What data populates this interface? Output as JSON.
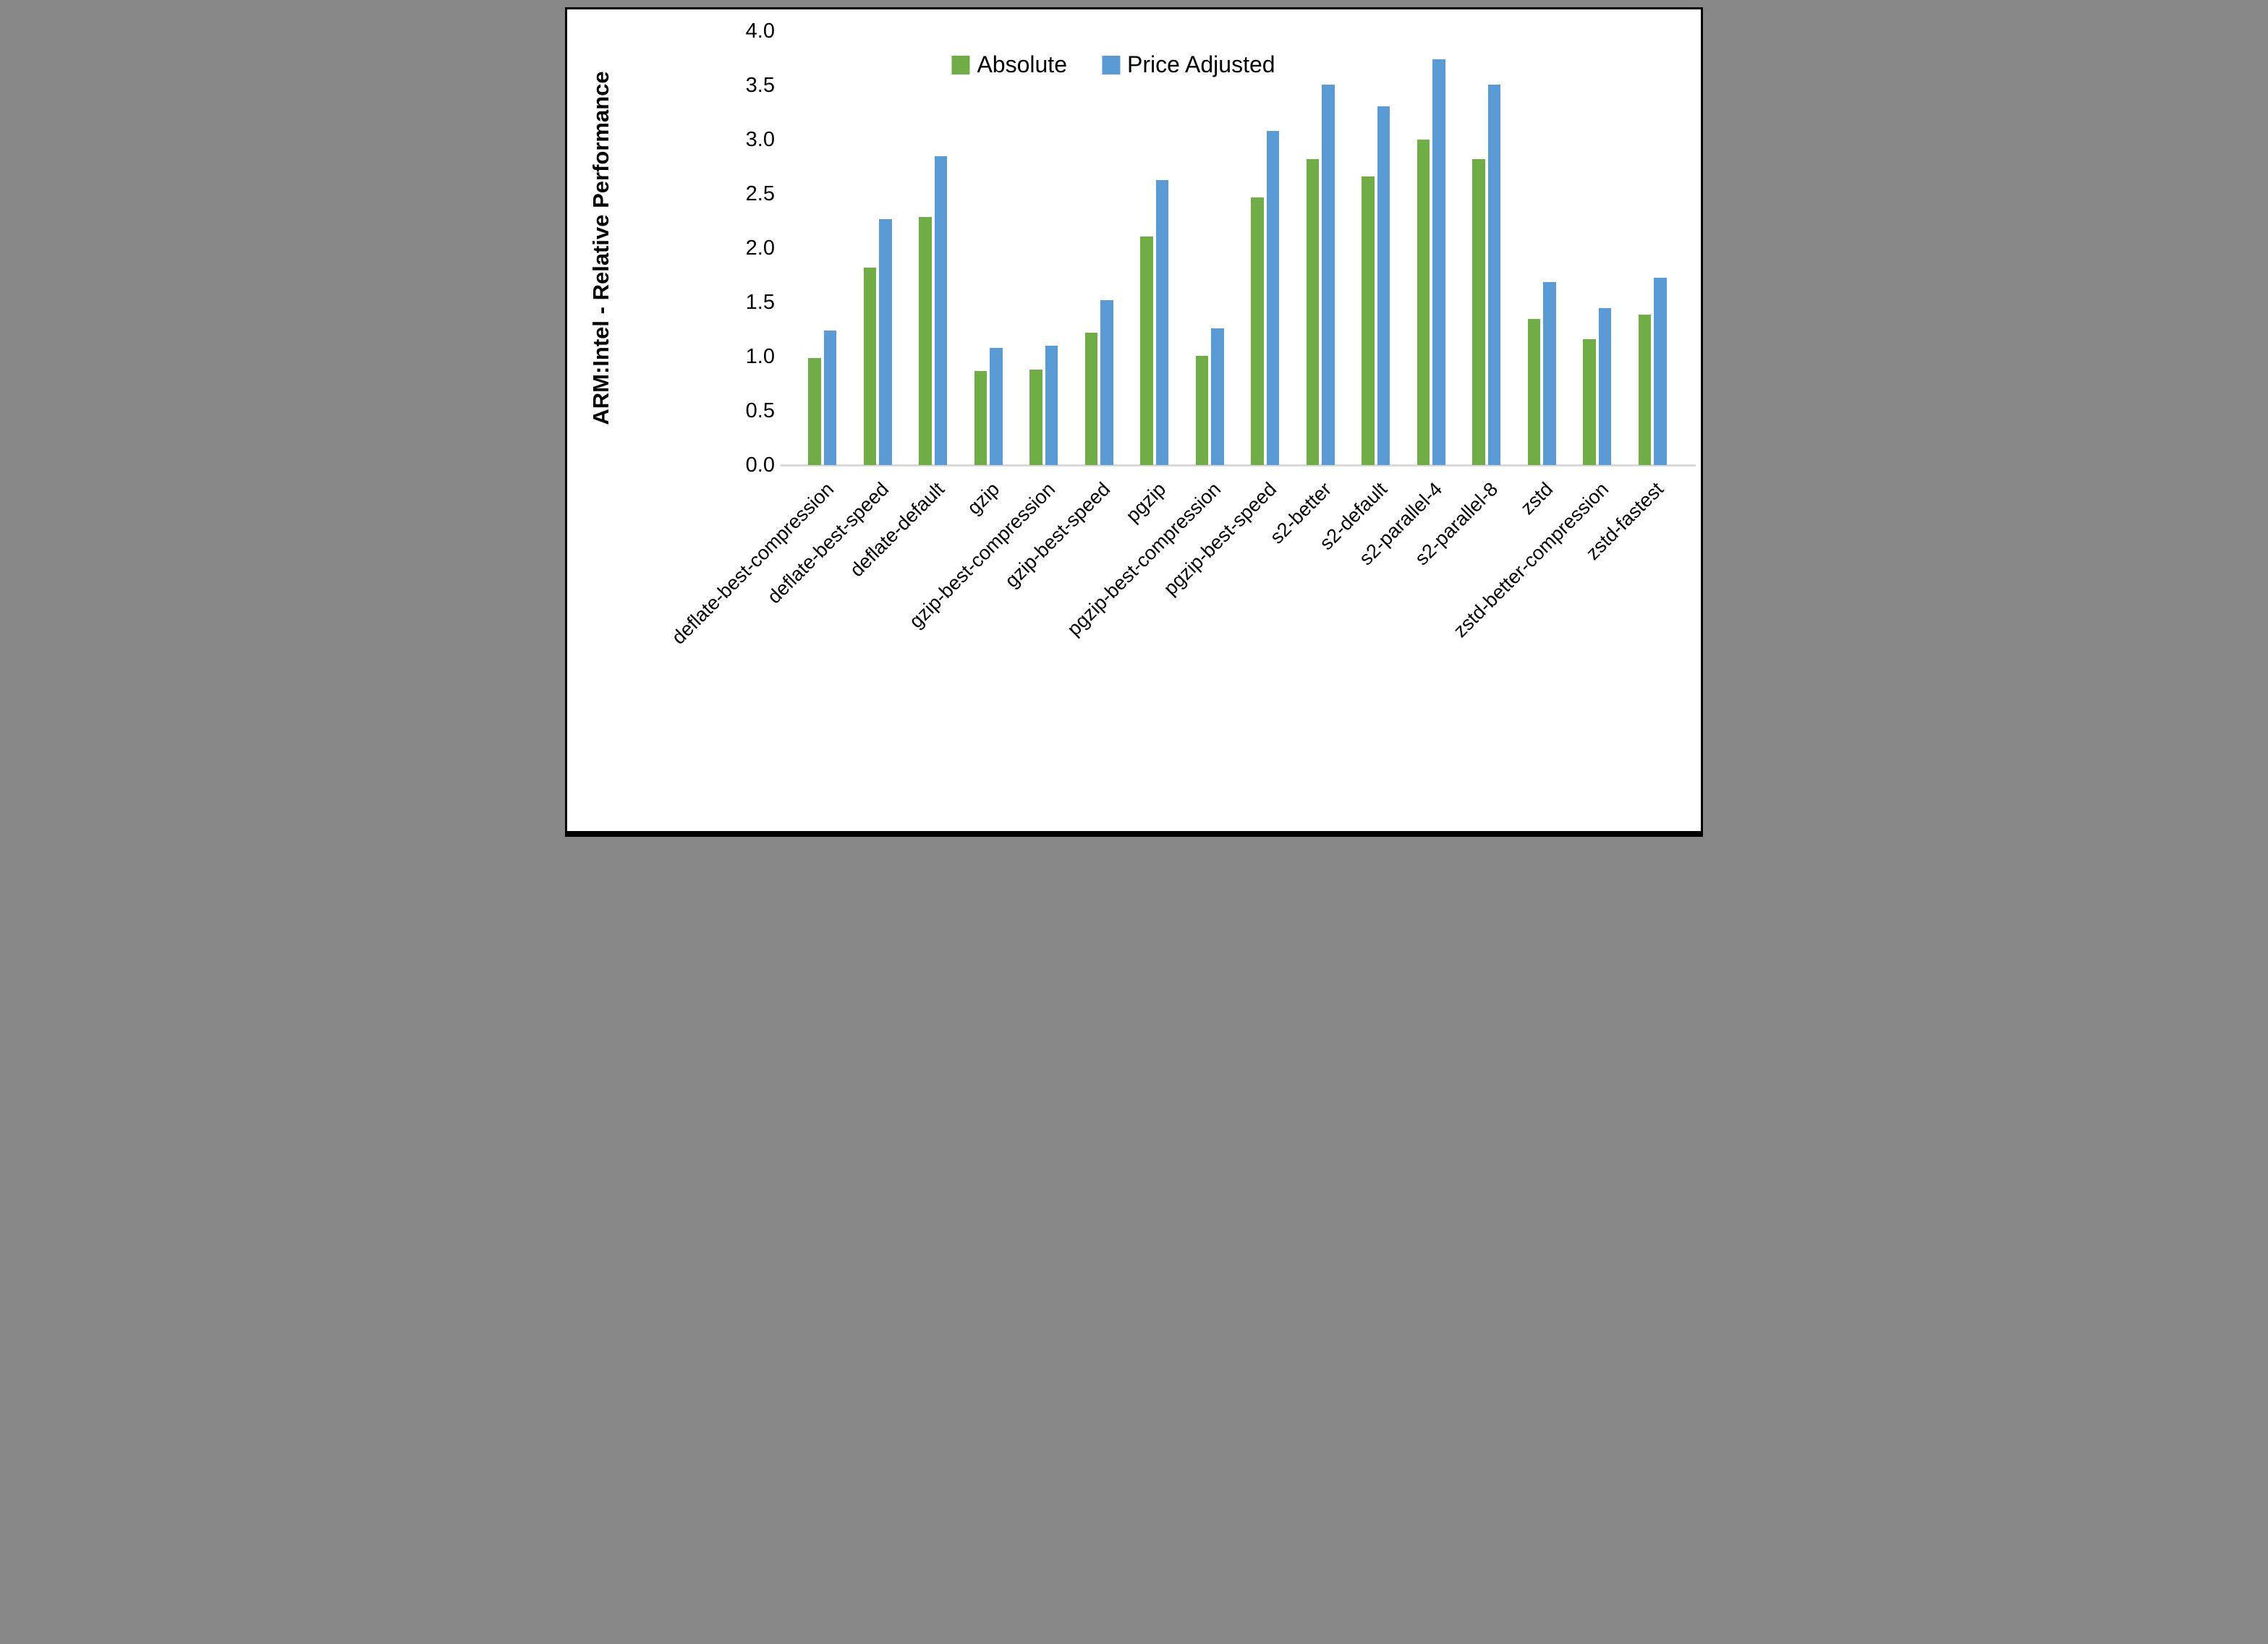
{
  "chart_data": {
    "type": "bar",
    "title": "",
    "ylabel": "ARM:Intel - Relative Performance",
    "xlabel": "",
    "ylim": [
      0.0,
      4.0
    ],
    "ytick_step": 0.5,
    "ytick_labels": [
      "0.0",
      "0.5",
      "1.0",
      "1.5",
      "2.0",
      "2.5",
      "3.0",
      "3.5",
      "4.0"
    ],
    "grid": false,
    "legend_position": "top-center",
    "categories": [
      "deflate-best-compression",
      "deflate-best-speed",
      "deflate-default",
      "gzip",
      "gzip-best-compression",
      "gzip-best-speed",
      "pgzip",
      "pgzip-best-compression",
      "pgzip-best-speed",
      "s2-better",
      "s2-default",
      "s2-parallel-4",
      "s2-parallel-8",
      "zstd",
      "zstd-better-compression",
      "zstd-fastest"
    ],
    "series": [
      {
        "name": "Absolute",
        "color": "#70AD47",
        "values": [
          0.99,
          1.82,
          2.29,
          0.87,
          0.88,
          1.22,
          2.11,
          1.01,
          2.47,
          2.82,
          2.66,
          3.0,
          2.82,
          1.35,
          1.16,
          1.39
        ]
      },
      {
        "name": "Price Adjusted",
        "color": "#5B9BD5",
        "values": [
          1.24,
          2.27,
          2.85,
          1.08,
          1.1,
          1.52,
          2.63,
          1.26,
          3.08,
          3.51,
          3.31,
          3.74,
          3.51,
          1.69,
          1.45,
          1.73
        ]
      }
    ]
  },
  "colors": {
    "background": "#ffffff",
    "axis_line": "#d9d9d9",
    "text": "#000000",
    "border": "#000000"
  }
}
